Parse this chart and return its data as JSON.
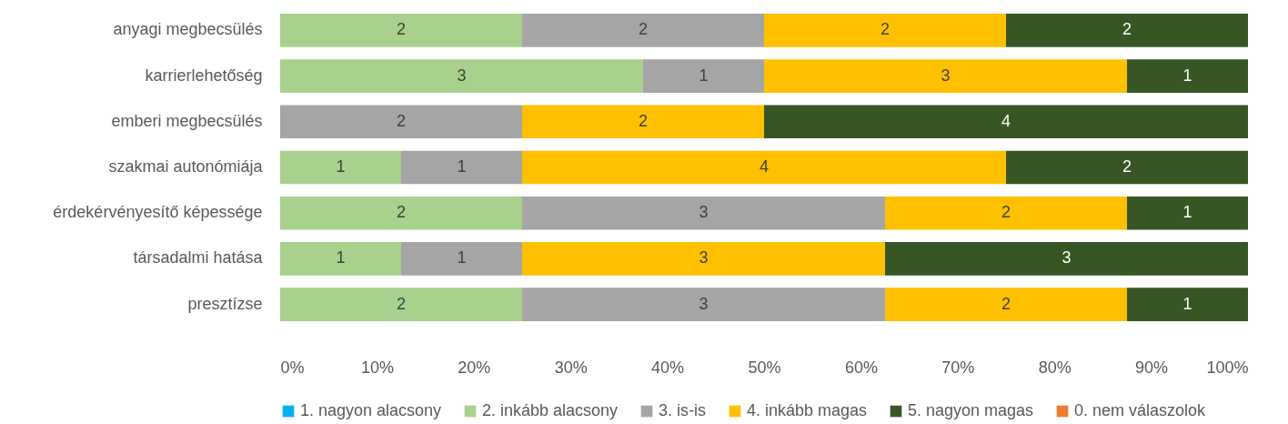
{
  "chart_data": {
    "type": "bar",
    "orientation": "horizontal",
    "stacked": true,
    "legend": "bottom",
    "grid": false,
    "categories": [
      "anyagi megbecsülés",
      "karrierlehetőség",
      "emberi megbecsülés",
      "szakmai autonómiája",
      "érdekérvényesítő képessége",
      "társadalmi hatása",
      "presztízse"
    ],
    "xlim": [
      0,
      100
    ],
    "xticks": [
      {
        "value": 0,
        "label": "0%"
      },
      {
        "value": 10,
        "label": "10%"
      },
      {
        "value": 20,
        "label": "20%"
      },
      {
        "value": 30,
        "label": "30%"
      },
      {
        "value": 40,
        "label": "40%"
      },
      {
        "value": 50,
        "label": "50%"
      },
      {
        "value": 60,
        "label": "60%"
      },
      {
        "value": 70,
        "label": "70%"
      },
      {
        "value": 80,
        "label": "80%"
      },
      {
        "value": 90,
        "label": "90%"
      },
      {
        "value": 100,
        "label": "100%"
      }
    ],
    "series": [
      {
        "name": "1. nagyon alacsony",
        "color": "#00b0f0",
        "values": [
          null,
          null,
          null,
          null,
          null,
          null,
          null
        ]
      },
      {
        "name": "2. inkább alacsony",
        "color": "#a9d18e",
        "values": [
          25,
          37.5,
          null,
          12.5,
          25,
          12.5,
          25
        ]
      },
      {
        "name": "3. is-is",
        "color": "#a5a5a5",
        "values": [
          25,
          12.5,
          25,
          12.5,
          37.5,
          12.5,
          37.5
        ]
      },
      {
        "name": "4. inkább magas",
        "color": "#ffc000",
        "values": [
          25,
          37.5,
          25,
          50,
          25,
          37.5,
          25
        ]
      },
      {
        "name": "5. nagyon magas",
        "color": "#375623",
        "values": [
          25,
          12.5,
          50,
          25,
          12.5,
          37.5,
          12.5
        ]
      },
      {
        "name": "0. nem válaszolok",
        "color": "#ed7d31",
        "values": [
          null,
          null,
          null,
          null,
          null,
          null,
          null
        ]
      }
    ],
    "annotations": [
      {
        "text": "2",
        "x": 12.5,
        "y": "anyagi megbecsülés"
      },
      {
        "text": "2",
        "x": 37.5,
        "y": "anyagi megbecsülés"
      },
      {
        "text": "2",
        "x": 62.5,
        "y": "anyagi megbecsülés"
      },
      {
        "text": "2",
        "x": 87.5,
        "y": "anyagi megbecsülés"
      },
      {
        "text": "3",
        "x": 18.75,
        "y": "karrierlehetőség"
      },
      {
        "text": "1",
        "x": 43.75,
        "y": "karrierlehetőség"
      },
      {
        "text": "3",
        "x": 68.75,
        "y": "karrierlehetőség"
      },
      {
        "text": "1",
        "x": 93.75,
        "y": "karrierlehetőség"
      },
      {
        "text": "2",
        "x": 12.5,
        "y": "emberi megbecsülés"
      },
      {
        "text": "2",
        "x": 37.5,
        "y": "emberi megbecsülés"
      },
      {
        "text": "4",
        "x": 75,
        "y": "emberi megbecsülés"
      },
      {
        "text": "1",
        "x": 6.25,
        "y": "szakmai autonómiája"
      },
      {
        "text": "1",
        "x": 18.75,
        "y": "szakmai autonómiája"
      },
      {
        "text": "4",
        "x": 50,
        "y": "szakmai autonómiája"
      },
      {
        "text": "2",
        "x": 87.5,
        "y": "szakmai autonómiája"
      },
      {
        "text": "2",
        "x": 12.5,
        "y": "érdekérvényesítő képessége"
      },
      {
        "text": "3",
        "x": 43.75,
        "y": "érdekérvényesítő képessége"
      },
      {
        "text": "2",
        "x": 75,
        "y": "érdekérvényesítő képessége"
      },
      {
        "text": "1",
        "x": 93.75,
        "y": "érdekérvényesítő képessége"
      },
      {
        "text": "1",
        "x": 6.25,
        "y": "társadalmi hatása"
      },
      {
        "text": "1",
        "x": 18.75,
        "y": "társadalmi hatása"
      },
      {
        "text": "3",
        "x": 43.75,
        "y": "társadalmi hatása"
      },
      {
        "text": "3",
        "x": 81.25,
        "y": "társadalmi hatása"
      },
      {
        "text": "2",
        "x": 12.5,
        "y": "presztízse"
      },
      {
        "text": "3",
        "x": 43.75,
        "y": "presztízse"
      },
      {
        "text": "2",
        "x": 75,
        "y": "presztízse"
      },
      {
        "text": "1",
        "x": 93.75,
        "y": "presztízse"
      }
    ]
  }
}
